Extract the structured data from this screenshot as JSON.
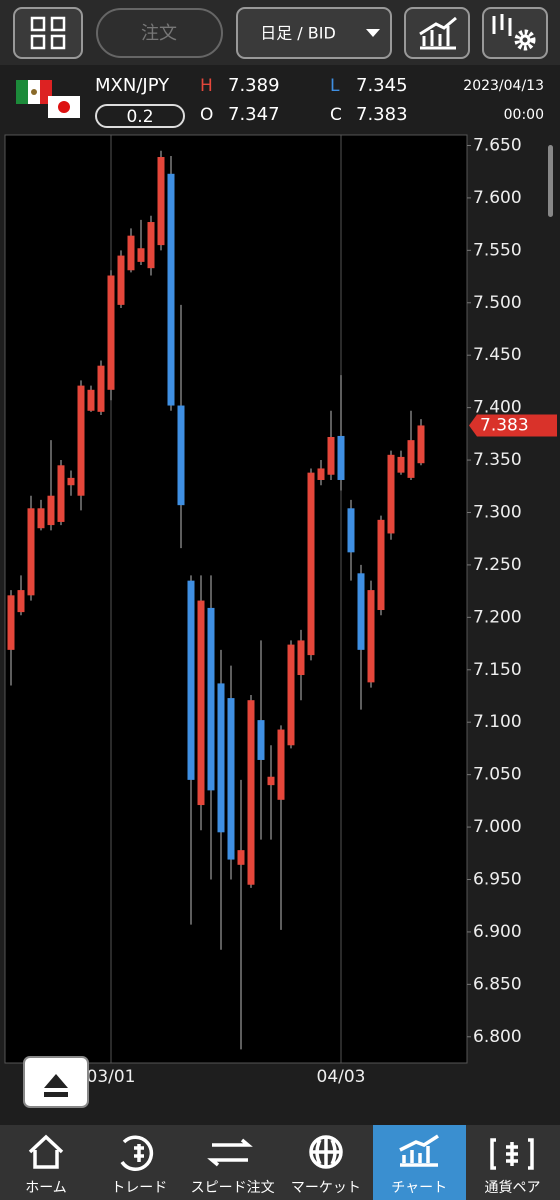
{
  "toolbar": {
    "order_button": "注文",
    "timeframe": "日足 / BID"
  },
  "quote": {
    "pair": "MXN/JPY",
    "spread": "0.2",
    "high_label": "H",
    "high": "7.389",
    "open_label": "O",
    "open": "7.347",
    "low_label": "L",
    "low": "7.345",
    "close_label": "C",
    "close": "7.383",
    "date": "2023/04/13",
    "time": "00:00"
  },
  "nav": [
    "ホーム",
    "トレード",
    "スピード注文",
    "マーケット",
    "チャート",
    "通貨ペア"
  ],
  "chart_data": {
    "type": "candlestick",
    "categories": [
      null,
      null,
      null,
      null,
      null,
      null,
      null,
      null,
      null,
      null,
      "03/01",
      null,
      null,
      null,
      null,
      null,
      null,
      null,
      null,
      null,
      null,
      null,
      null,
      null,
      null,
      null,
      null,
      null,
      null,
      null,
      null,
      null,
      null,
      "04/03",
      null,
      null,
      null,
      null,
      null,
      null,
      null,
      null
    ],
    "open": [
      7.169,
      7.205,
      7.221,
      7.285,
      7.288,
      7.291,
      7.326,
      7.316,
      7.397,
      7.396,
      7.417,
      7.498,
      7.531,
      7.539,
      7.533,
      7.555,
      7.623,
      7.402,
      7.235,
      7.021,
      7.209,
      7.137,
      7.123,
      6.964,
      6.945,
      7.102,
      7.04,
      7.026,
      7.078,
      7.145,
      7.164,
      7.331,
      7.336,
      7.373,
      7.304,
      7.242,
      7.138,
      7.207,
      7.28,
      7.338,
      7.333,
      7.347
    ],
    "high": [
      7.226,
      7.24,
      7.316,
      7.312,
      7.369,
      7.35,
      7.34,
      7.426,
      7.421,
      7.445,
      7.531,
      7.55,
      7.571,
      7.579,
      7.583,
      7.645,
      7.64,
      7.498,
      7.24,
      7.24,
      7.24,
      7.169,
      7.154,
      7.045,
      7.126,
      7.178,
      7.078,
      7.097,
      7.178,
      7.188,
      7.342,
      7.35,
      7.397,
      7.431,
      7.312,
      7.25,
      7.235,
      7.297,
      7.359,
      7.359,
      7.397,
      7.389
    ],
    "low": [
      7.135,
      7.202,
      7.216,
      7.283,
      7.283,
      7.288,
      7.316,
      7.302,
      7.396,
      7.393,
      7.407,
      7.495,
      7.529,
      7.536,
      7.526,
      7.55,
      7.397,
      7.266,
      6.907,
      6.997,
      6.95,
      6.883,
      6.95,
      6.788,
      6.942,
      6.988,
      6.988,
      6.902,
      7.075,
      7.121,
      7.159,
      7.326,
      7.331,
      7.321,
      7.235,
      7.112,
      7.133,
      7.202,
      7.274,
      7.336,
      7.331,
      7.345
    ],
    "close": [
      7.221,
      7.226,
      7.304,
      7.304,
      7.316,
      7.345,
      7.333,
      7.421,
      7.417,
      7.44,
      7.526,
      7.545,
      7.564,
      7.552,
      7.577,
      7.639,
      7.402,
      7.307,
      7.045,
      7.216,
      7.035,
      6.995,
      6.969,
      6.978,
      7.121,
      7.064,
      7.048,
      7.093,
      7.174,
      7.178,
      7.338,
      7.342,
      7.372,
      7.331,
      7.262,
      7.169,
      7.226,
      7.293,
      7.355,
      7.353,
      7.369,
      7.383
    ],
    "up_color": "#e5473b",
    "down_color": "#3f8fe2",
    "ylim": [
      6.775,
      7.66
    ],
    "yticks": [
      {
        "value": 7.65,
        "label": "7.650"
      },
      {
        "value": 7.6,
        "label": "7.600"
      },
      {
        "value": 7.55,
        "label": "7.550"
      },
      {
        "value": 7.5,
        "label": "7.500"
      },
      {
        "value": 7.45,
        "label": "7.450"
      },
      {
        "value": 7.4,
        "label": "7.400"
      },
      {
        "value": 7.35,
        "label": "7.350"
      },
      {
        "value": 7.3,
        "label": "7.300"
      },
      {
        "value": 7.25,
        "label": "7.250"
      },
      {
        "value": 7.2,
        "label": "7.200"
      },
      {
        "value": 7.15,
        "label": "7.150"
      },
      {
        "value": 7.1,
        "label": "7.100"
      },
      {
        "value": 7.05,
        "label": "7.050"
      },
      {
        "value": 7.0,
        "label": "7.000"
      },
      {
        "value": 6.95,
        "label": "6.950"
      },
      {
        "value": 6.9,
        "label": "6.900"
      },
      {
        "value": 6.85,
        "label": "6.850"
      },
      {
        "value": 6.8,
        "label": "6.800"
      }
    ],
    "last_price": {
      "value": 7.383,
      "label": "7.383"
    }
  }
}
